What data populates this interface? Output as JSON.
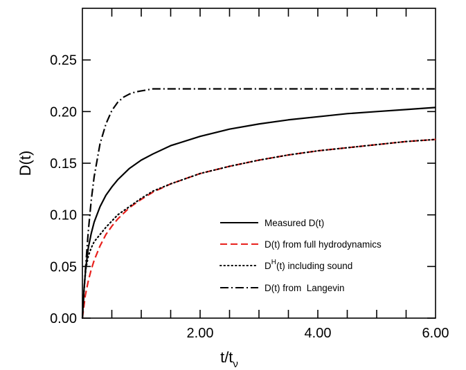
{
  "chart_data": {
    "type": "line",
    "title": "",
    "xlabel": "t/t",
    "xlabel_sub": "ν",
    "ylabel": "D(t)",
    "xlim": [
      0,
      6
    ],
    "ylim": [
      0,
      0.3
    ],
    "x_ticks": [
      2,
      4,
      6
    ],
    "x_tick_labels": [
      "2.00",
      "4.00",
      "6.00"
    ],
    "y_ticks": [
      0,
      0.05,
      0.1,
      0.15,
      0.2,
      0.25
    ],
    "y_tick_labels": [
      "0.00",
      "0.05",
      "0.10",
      "0.15",
      "0.20",
      "0.25"
    ],
    "grid": false,
    "legend_position": "bottom-right",
    "series": [
      {
        "name": "Measured D(t)",
        "style": "solid",
        "color": "#000000",
        "x": [
          0,
          0.03,
          0.06,
          0.1,
          0.15,
          0.2,
          0.3,
          0.4,
          0.5,
          0.6,
          0.8,
          1.0,
          1.2,
          1.5,
          2.0,
          2.5,
          3.0,
          3.5,
          4.0,
          4.5,
          5.0,
          5.5,
          6.0
        ],
        "y": [
          0,
          0.03,
          0.05,
          0.068,
          0.082,
          0.093,
          0.108,
          0.119,
          0.127,
          0.134,
          0.145,
          0.153,
          0.159,
          0.167,
          0.176,
          0.183,
          0.188,
          0.192,
          0.195,
          0.198,
          0.2,
          0.202,
          0.204
        ]
      },
      {
        "name": "D(t) from full hydrodynamics",
        "style": "dashed",
        "color": "#e8201c",
        "x": [
          0,
          0.05,
          0.1,
          0.15,
          0.2,
          0.3,
          0.4,
          0.5,
          0.6,
          0.8,
          1.0,
          1.2,
          1.5,
          2.0,
          2.5,
          3.0,
          3.5,
          4.0,
          4.5,
          5.0,
          5.5,
          6.0
        ],
        "y": [
          0,
          0.022,
          0.036,
          0.047,
          0.056,
          0.07,
          0.081,
          0.089,
          0.096,
          0.107,
          0.115,
          0.122,
          0.13,
          0.14,
          0.147,
          0.153,
          0.158,
          0.162,
          0.165,
          0.168,
          0.171,
          0.173
        ]
      },
      {
        "name": "(t) including sound",
        "name_prefix": "D",
        "name_superscript": "H",
        "style": "dotted",
        "color": "#000000",
        "x": [
          0,
          0.03,
          0.06,
          0.1,
          0.15,
          0.2,
          0.3,
          0.4,
          0.5,
          0.6,
          0.8,
          1.0,
          1.2,
          1.5,
          2.0,
          2.5,
          3.0,
          3.5,
          4.0,
          4.5,
          5.0,
          5.5,
          6.0
        ],
        "y": [
          0,
          0.03,
          0.048,
          0.06,
          0.068,
          0.074,
          0.081,
          0.088,
          0.094,
          0.1,
          0.108,
          0.116,
          0.123,
          0.13,
          0.14,
          0.147,
          0.153,
          0.158,
          0.162,
          0.165,
          0.168,
          0.171,
          0.173
        ]
      },
      {
        "name": "D(t) from  Langevin",
        "style": "dashdot",
        "color": "#000000",
        "x": [
          0,
          0.05,
          0.1,
          0.15,
          0.2,
          0.3,
          0.4,
          0.5,
          0.6,
          0.7,
          0.8,
          0.9,
          1.0,
          1.2,
          1.5,
          2.0,
          3.0,
          4.0,
          5.0,
          6.0
        ],
        "y": [
          0,
          0.046,
          0.084,
          0.114,
          0.137,
          0.169,
          0.188,
          0.201,
          0.209,
          0.214,
          0.217,
          0.219,
          0.22,
          0.222,
          0.222,
          0.222,
          0.222,
          0.222,
          0.222,
          0.222
        ]
      }
    ]
  }
}
